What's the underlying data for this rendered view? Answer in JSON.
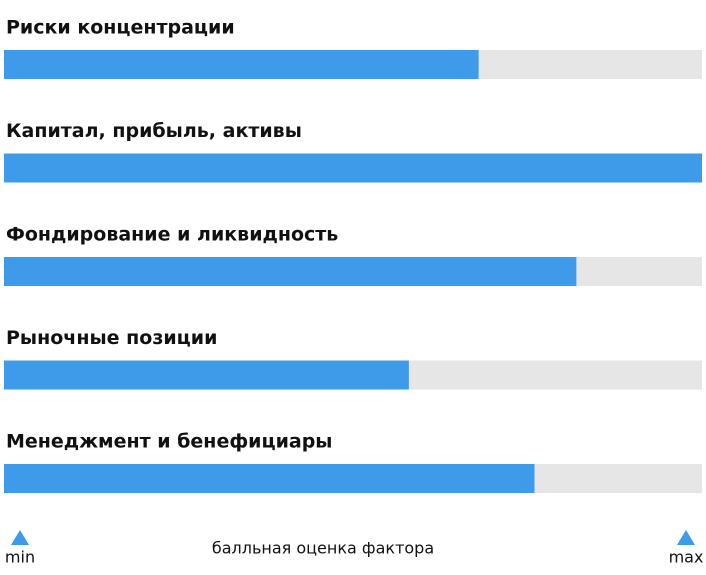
{
  "chart_data": {
    "type": "hbar",
    "categories": [
      "Риски концентрации",
      "Капитал, прибыль, активы",
      "Фондирование и ликвидность",
      "Рыночные позиции",
      "Менеджмент и бенефициары"
    ],
    "values": [
      68,
      100,
      82,
      58,
      76
    ],
    "color": "#3d9be9",
    "track_color": "#e6e6e6",
    "xlim": [
      0,
      100
    ],
    "xticks": [
      {
        "value": 0,
        "label": "min"
      },
      {
        "value": 100,
        "label": "max"
      }
    ],
    "xlabel": "балльная оценка фактора"
  }
}
